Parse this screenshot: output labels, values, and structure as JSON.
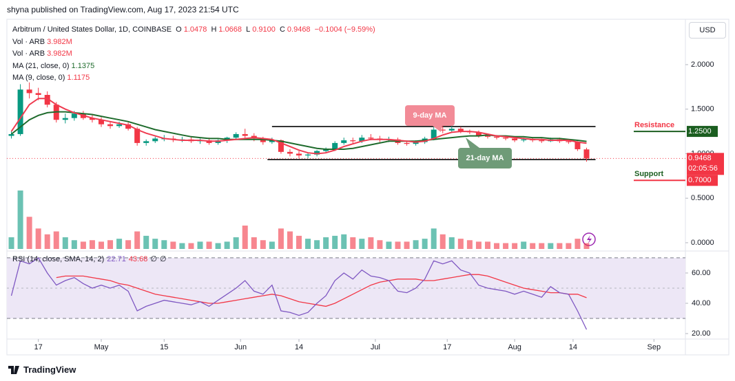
{
  "header": {
    "published": "shyna published on TradingView.com, Aug 17, 2023 21:54 UTC",
    "symbol": "Arbitrum / United States Dollar, 1D, COINBASE",
    "ohlc": [
      {
        "label": "O",
        "value": "1.0478"
      },
      {
        "label": "H",
        "value": "1.0668"
      },
      {
        "label": "L",
        "value": "0.9100"
      },
      {
        "label": "C",
        "value": "0.9468"
      }
    ],
    "change": "−0.1004 (−9.59%)",
    "volume_legend": [
      {
        "name": "Vol · ARB",
        "value": "3.982M"
      },
      {
        "name": "Vol · ARB",
        "value": "3.982M"
      }
    ],
    "currency": "USD"
  },
  "chart_data": [
    {
      "type": "candlestick",
      "x": [
        101,
        103,
        105,
        107,
        109,
        111,
        113,
        115,
        117,
        119,
        121,
        123,
        125,
        127,
        129,
        131,
        133,
        135,
        137,
        139,
        141,
        143,
        145,
        147,
        149,
        151,
        153,
        155,
        157,
        159,
        161,
        163,
        165,
        167,
        169,
        171,
        173,
        175,
        177,
        179,
        181,
        183,
        185,
        187,
        189,
        191,
        193,
        195,
        197,
        199,
        201,
        203,
        205,
        207,
        209,
        211,
        213,
        215,
        217,
        219,
        221,
        223,
        225,
        227,
        229
      ],
      "open": [
        1.2,
        1.22,
        1.72,
        1.68,
        1.66,
        1.55,
        1.38,
        1.4,
        1.45,
        1.4,
        1.38,
        1.33,
        1.31,
        1.33,
        1.28,
        1.12,
        1.14,
        1.17,
        1.17,
        1.16,
        1.16,
        1.14,
        1.15,
        1.12,
        1.15,
        1.18,
        1.22,
        1.2,
        1.17,
        1.13,
        1.15,
        1.02,
        1.0,
        0.98,
        0.99,
        1.03,
        1.05,
        1.12,
        1.15,
        1.14,
        1.18,
        1.17,
        1.16,
        1.16,
        1.12,
        1.11,
        1.13,
        1.17,
        1.27,
        1.26,
        1.28,
        1.25,
        1.24,
        1.2,
        1.19,
        1.18,
        1.17,
        1.15,
        1.16,
        1.15,
        1.14,
        1.16,
        1.14,
        1.13,
        1.0478
      ],
      "high": [
        1.25,
        1.78,
        1.8,
        1.74,
        1.7,
        1.58,
        1.45,
        1.48,
        1.48,
        1.44,
        1.41,
        1.36,
        1.36,
        1.35,
        1.3,
        1.16,
        1.19,
        1.21,
        1.2,
        1.19,
        1.19,
        1.17,
        1.18,
        1.16,
        1.19,
        1.24,
        1.28,
        1.23,
        1.19,
        1.18,
        1.16,
        1.05,
        1.03,
        1.01,
        1.04,
        1.07,
        1.14,
        1.18,
        1.18,
        1.21,
        1.22,
        1.2,
        1.19,
        1.18,
        1.14,
        1.15,
        1.19,
        1.3,
        1.31,
        1.31,
        1.3,
        1.27,
        1.26,
        1.22,
        1.21,
        1.2,
        1.19,
        1.18,
        1.18,
        1.17,
        1.18,
        1.18,
        1.16,
        1.14,
        1.0668
      ],
      "low": [
        1.17,
        1.2,
        1.62,
        1.6,
        1.52,
        1.35,
        1.34,
        1.37,
        1.38,
        1.35,
        1.3,
        1.28,
        1.29,
        1.26,
        1.09,
        1.09,
        1.12,
        1.14,
        1.13,
        1.13,
        1.12,
        1.11,
        1.1,
        1.1,
        1.12,
        1.16,
        1.17,
        1.14,
        1.1,
        1.11,
        1.0,
        0.97,
        0.95,
        0.95,
        0.97,
        1.01,
        1.03,
        1.1,
        1.11,
        1.12,
        1.15,
        1.13,
        1.13,
        1.1,
        1.09,
        1.09,
        1.11,
        1.15,
        1.23,
        1.24,
        1.23,
        1.22,
        1.18,
        1.17,
        1.16,
        1.15,
        1.13,
        1.13,
        1.13,
        1.12,
        1.13,
        1.12,
        1.11,
        1.03,
        0.91
      ],
      "close": [
        1.22,
        1.72,
        1.68,
        1.66,
        1.55,
        1.38,
        1.4,
        1.45,
        1.4,
        1.38,
        1.33,
        1.31,
        1.33,
        1.28,
        1.12,
        1.14,
        1.17,
        1.17,
        1.16,
        1.16,
        1.14,
        1.15,
        1.12,
        1.15,
        1.18,
        1.22,
        1.2,
        1.17,
        1.13,
        1.15,
        1.02,
        1.0,
        0.98,
        0.99,
        1.03,
        1.05,
        1.12,
        1.15,
        1.14,
        1.18,
        1.17,
        1.16,
        1.16,
        1.12,
        1.11,
        1.13,
        1.17,
        1.27,
        1.26,
        1.28,
        1.25,
        1.24,
        1.2,
        1.19,
        1.18,
        1.17,
        1.15,
        1.16,
        1.15,
        1.14,
        1.16,
        1.14,
        1.13,
        1.05,
        0.9468
      ],
      "volume": [
        8,
        40,
        22,
        14,
        10,
        12,
        8,
        6,
        5,
        6,
        5,
        6,
        7,
        6,
        12,
        9,
        7,
        6,
        5,
        4,
        4,
        5,
        5,
        4,
        5,
        8,
        16,
        8,
        6,
        5,
        14,
        12,
        9,
        7,
        6,
        8,
        9,
        10,
        8,
        7,
        8,
        6,
        5,
        5,
        5,
        6,
        7,
        14,
        10,
        8,
        7,
        6,
        5,
        5,
        4,
        4,
        4,
        5,
        4,
        4,
        4,
        4,
        4,
        7,
        3.982
      ],
      "up_color": "#089981",
      "down_color": "#f23645",
      "series": [
        {
          "name": "MA (21, close, 0)",
          "color": "#1e6b2c",
          "values": [
            1.22,
            1.3,
            1.38,
            1.43,
            1.46,
            1.47,
            1.47,
            1.46,
            1.45,
            1.44,
            1.42,
            1.4,
            1.38,
            1.36,
            1.33,
            1.3,
            1.27,
            1.25,
            1.23,
            1.21,
            1.19,
            1.18,
            1.17,
            1.17,
            1.16,
            1.16,
            1.16,
            1.16,
            1.16,
            1.15,
            1.14,
            1.12,
            1.1,
            1.08,
            1.06,
            1.05,
            1.05,
            1.05,
            1.06,
            1.08,
            1.1,
            1.12,
            1.14,
            1.14,
            1.14,
            1.14,
            1.15,
            1.16,
            1.17,
            1.18,
            1.19,
            1.2,
            1.2,
            1.21,
            1.2,
            1.2,
            1.19,
            1.19,
            1.18,
            1.18,
            1.17,
            1.17,
            1.16,
            1.15,
            1.1375
          ]
        },
        {
          "name": "MA (9, close, 0)",
          "color": "#ef3b50",
          "values": [
            1.25,
            1.4,
            1.55,
            1.62,
            1.62,
            1.55,
            1.5,
            1.46,
            1.43,
            1.4,
            1.38,
            1.36,
            1.34,
            1.32,
            1.27,
            1.23,
            1.2,
            1.17,
            1.16,
            1.15,
            1.15,
            1.15,
            1.14,
            1.14,
            1.15,
            1.16,
            1.17,
            1.18,
            1.17,
            1.16,
            1.12,
            1.08,
            1.04,
            1.01,
            1.0,
            1.01,
            1.04,
            1.08,
            1.11,
            1.14,
            1.16,
            1.16,
            1.16,
            1.15,
            1.14,
            1.13,
            1.14,
            1.17,
            1.21,
            1.24,
            1.25,
            1.25,
            1.24,
            1.22,
            1.2,
            1.19,
            1.18,
            1.17,
            1.16,
            1.16,
            1.15,
            1.15,
            1.15,
            1.13,
            1.1175
          ]
        }
      ],
      "xlim": [
        100,
        251
      ],
      "xticks": [
        {
          "value": 107,
          "label": "17"
        },
        {
          "value": 121,
          "label": "May"
        },
        {
          "value": 135,
          "label": "15"
        },
        {
          "value": 152,
          "label": "Jun"
        },
        {
          "value": 165,
          "label": "14"
        },
        {
          "value": 182,
          "label": "Jul"
        },
        {
          "value": 198,
          "label": "17"
        },
        {
          "value": 213,
          "label": "Aug"
        },
        {
          "value": 226,
          "label": "14"
        },
        {
          "value": 244,
          "label": "Sep"
        }
      ],
      "ylim": [
        -0.07,
        2.494
      ],
      "yticks": [
        {
          "value": 0,
          "label": "0.0000"
        },
        {
          "value": 0.5,
          "label": "0.5000"
        },
        {
          "value": 1,
          "label": "1.0000"
        },
        {
          "value": 1.5,
          "label": "1.5000"
        },
        {
          "value": 2,
          "label": "2.0000"
        }
      ],
      "trendlines": [
        {
          "from": 159,
          "to": 231,
          "value": 1.305
        },
        {
          "from": 158,
          "to": 231,
          "value": 0.934
        }
      ],
      "levels": [
        {
          "name": "Resistance",
          "value": 1.25,
          "label": "1.2500",
          "text_color": "#f23645",
          "line_color": "#1b5e20"
        },
        {
          "name": "Support",
          "value": 0.7,
          "label": "0.7000",
          "text_color": "#1b5e20",
          "line_color": "#f23645"
        }
      ],
      "last_price": {
        "value": 0.9468,
        "label": "0.9468"
      },
      "countdown": "02:05:56",
      "annotations": [
        {
          "text": "9-day MA",
          "color": "#f28b97"
        },
        {
          "text": "21-day MA",
          "color": "#6f9b78"
        }
      ]
    },
    {
      "type": "line",
      "title": "RSI (14, close, SMA, 14, 2)",
      "legend_values": [
        "∅",
        "∅"
      ],
      "x": [
        101,
        103,
        105,
        107,
        109,
        111,
        113,
        115,
        117,
        119,
        121,
        123,
        125,
        127,
        129,
        131,
        133,
        135,
        137,
        139,
        141,
        143,
        145,
        147,
        149,
        151,
        153,
        155,
        157,
        159,
        161,
        163,
        165,
        167,
        169,
        171,
        173,
        175,
        177,
        179,
        181,
        183,
        185,
        187,
        189,
        191,
        193,
        195,
        197,
        199,
        201,
        203,
        205,
        207,
        209,
        211,
        213,
        215,
        217,
        219,
        221,
        223,
        225,
        227,
        229
      ],
      "series": [
        {
          "color": "#7e57c2",
          "values": [
            45,
            68,
            66,
            70,
            60,
            52,
            55,
            57,
            53,
            50,
            52,
            50,
            52,
            48,
            35,
            38,
            40,
            42,
            41,
            40,
            39,
            41,
            38,
            42,
            46,
            50,
            55,
            48,
            46,
            52,
            35,
            34,
            32,
            34,
            40,
            45,
            55,
            60,
            56,
            62,
            58,
            57,
            55,
            48,
            47,
            50,
            56,
            68,
            66,
            68,
            62,
            60,
            52,
            50,
            49,
            48,
            46,
            48,
            46,
            44,
            51,
            47,
            46,
            35,
            22.71
          ]
        },
        {
          "color": "#f23645",
          "values": [
            null,
            null,
            null,
            null,
            null,
            57,
            58,
            58,
            58,
            57,
            56,
            55,
            53,
            52,
            50,
            48,
            46,
            45,
            44,
            43,
            42,
            41,
            40,
            40,
            41,
            42,
            43,
            44,
            45,
            46,
            45,
            43,
            41,
            40,
            39,
            38,
            40,
            43,
            46,
            49,
            52,
            54,
            55,
            56,
            56,
            56,
            55,
            55,
            56,
            57,
            58,
            59,
            59,
            58,
            56,
            54,
            52,
            50,
            49,
            48,
            47,
            47,
            46,
            46,
            43.68
          ]
        }
      ],
      "xlim": [
        100,
        251
      ],
      "ylim": [
        16.4,
        73.6
      ],
      "yticks": [
        {
          "value": 20,
          "label": "20.00"
        },
        {
          "value": 40,
          "label": "40.00"
        },
        {
          "value": 60,
          "label": "60.00"
        }
      ],
      "band": [
        30,
        70
      ],
      "midline": 50,
      "band_color": "#ede7f6"
    }
  ],
  "footer": {
    "brand": "TradingView"
  }
}
